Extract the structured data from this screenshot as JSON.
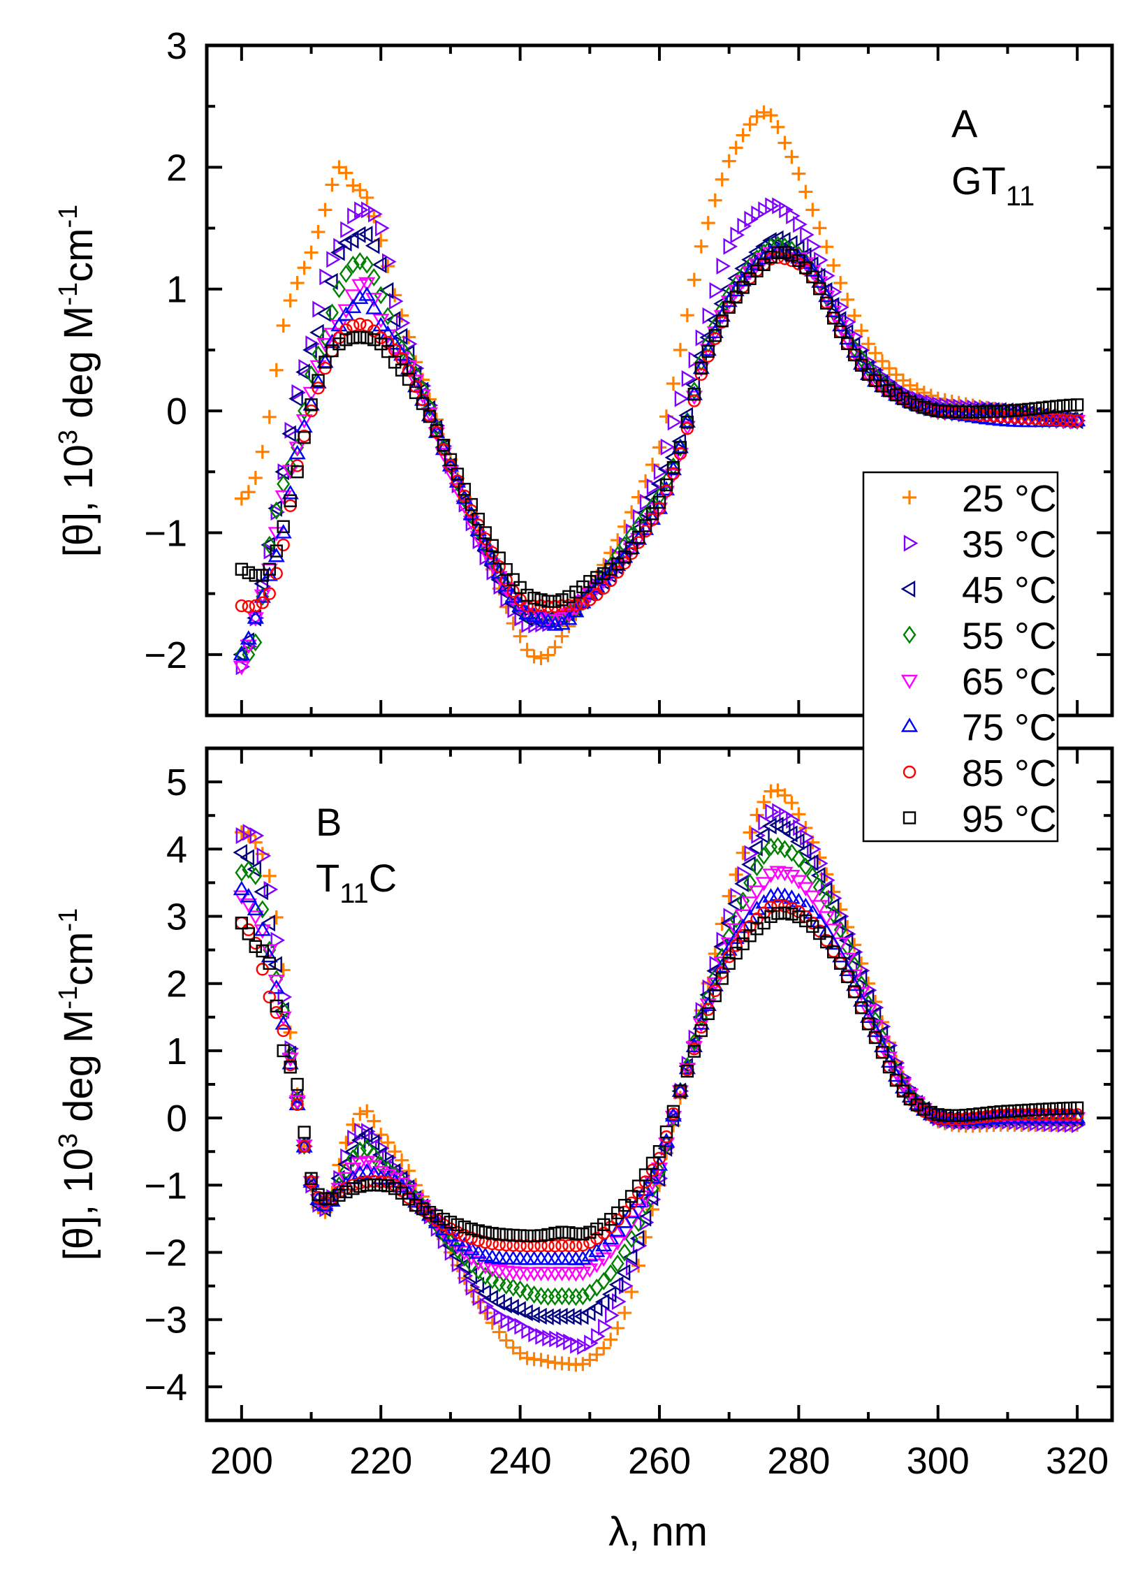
{
  "chart_data": [
    {
      "type": "scatter",
      "panel": "A",
      "title_lines": [
        "A",
        "GT",
        "11"
      ],
      "xlabel": "λ, nm",
      "ylabel": {
        "main": "[θ], 10",
        "sup1": "3",
        "mid": " deg M",
        "sup2": "-1",
        "mid2": "cm",
        "sup3": "-1"
      },
      "xlim": [
        195,
        325
      ],
      "ylim": [
        -2.5,
        3
      ],
      "xticks": [
        200,
        220,
        240,
        260,
        280,
        300,
        320
      ],
      "yticks": [
        -2,
        -1,
        0,
        1,
        2,
        3
      ],
      "ytick_labels": [
        "−2",
        "−1",
        "0",
        "1",
        "2",
        "3"
      ],
      "x": [
        200,
        202,
        204,
        206,
        208,
        210,
        212,
        214,
        216,
        218,
        220,
        222,
        225,
        230,
        235,
        240,
        243,
        246,
        250,
        255,
        260,
        263,
        266,
        270,
        275,
        278,
        282,
        286,
        290,
        295,
        300,
        310,
        320
      ],
      "series": [
        {
          "name": "25 °C",
          "values": [
            -0.72,
            -0.55,
            -0.05,
            0.7,
            1.05,
            1.3,
            1.65,
            2.0,
            1.85,
            1.75,
            1.4,
            0.95,
            0.4,
            -0.4,
            -1.15,
            -1.85,
            -2.03,
            -1.85,
            -1.45,
            -0.95,
            -0.3,
            0.5,
            1.35,
            2.05,
            2.45,
            2.2,
            1.65,
            1.05,
            0.55,
            0.25,
            0.1,
            0.0,
            -0.05
          ]
        },
        {
          "name": "35 °C",
          "values": [
            -2.1,
            -1.7,
            -1.15,
            -0.5,
            0.15,
            0.55,
            1.1,
            1.35,
            1.6,
            1.65,
            1.5,
            0.9,
            0.35,
            -0.45,
            -1.2,
            -1.7,
            -1.75,
            -1.7,
            -1.5,
            -1.1,
            -0.5,
            0.1,
            0.6,
            1.35,
            1.65,
            1.65,
            1.35,
            0.85,
            0.4,
            0.15,
            0.05,
            0.0,
            -0.08
          ]
        },
        {
          "name": "45 °C",
          "values": [
            -2.0,
            -1.7,
            -1.1,
            -0.5,
            0.1,
            0.5,
            0.8,
            1.3,
            1.4,
            1.45,
            1.2,
            0.75,
            0.3,
            -0.45,
            -1.15,
            -1.65,
            -1.7,
            -1.7,
            -1.5,
            -1.2,
            -0.6,
            -0.25,
            0.45,
            1.0,
            1.35,
            1.4,
            1.2,
            0.75,
            0.35,
            0.1,
            0.0,
            0.0,
            -0.08
          ]
        },
        {
          "name": "55 °C",
          "values": [
            -2.0,
            -1.9,
            -1.1,
            -0.6,
            -0.3,
            0.3,
            0.6,
            1.0,
            1.2,
            1.2,
            0.95,
            0.6,
            0.3,
            -0.45,
            -1.1,
            -1.6,
            -1.7,
            -1.7,
            -1.5,
            -1.1,
            -0.7,
            -0.3,
            0.4,
            0.95,
            1.3,
            1.35,
            1.15,
            0.7,
            0.35,
            0.1,
            0.0,
            -0.05,
            -0.08
          ]
        },
        {
          "name": "65 °C",
          "values": [
            -2.1,
            -1.7,
            -1.3,
            -0.7,
            -0.3,
            0.15,
            0.55,
            0.7,
            0.95,
            1.05,
            0.75,
            0.5,
            0.25,
            -0.5,
            -1.15,
            -1.6,
            -1.7,
            -1.7,
            -1.5,
            -1.2,
            -0.8,
            -0.35,
            0.35,
            0.9,
            1.25,
            1.3,
            1.15,
            0.7,
            0.3,
            0.1,
            0.0,
            -0.05,
            -0.08
          ]
        },
        {
          "name": "75 °C",
          "values": [
            -2.0,
            -1.7,
            -1.35,
            -1.0,
            -0.35,
            0.05,
            0.4,
            0.7,
            0.85,
            0.95,
            0.7,
            0.55,
            0.2,
            -0.45,
            -1.1,
            -1.6,
            -1.7,
            -1.75,
            -1.5,
            -1.2,
            -0.8,
            -0.3,
            0.35,
            0.9,
            1.25,
            1.3,
            1.15,
            0.7,
            0.3,
            0.1,
            0.0,
            -0.08,
            -0.08
          ]
        },
        {
          "name": "85 °C",
          "values": [
            -1.6,
            -1.6,
            -1.5,
            -1.1,
            -0.45,
            0.0,
            0.35,
            0.6,
            0.7,
            0.7,
            0.6,
            0.5,
            0.2,
            -0.45,
            -1.05,
            -1.55,
            -1.6,
            -1.6,
            -1.55,
            -1.25,
            -0.8,
            -0.35,
            0.3,
            0.85,
            1.2,
            1.25,
            1.1,
            0.65,
            0.3,
            0.1,
            0.0,
            -0.05,
            -0.08
          ]
        },
        {
          "name": "95 °C",
          "values": [
            -1.3,
            -1.35,
            -1.3,
            -0.95,
            -0.5,
            0.05,
            0.4,
            0.55,
            0.6,
            0.6,
            0.55,
            0.4,
            0.15,
            -0.4,
            -1.0,
            -1.45,
            -1.55,
            -1.55,
            -1.4,
            -1.2,
            -0.75,
            -0.3,
            0.35,
            0.85,
            1.2,
            1.3,
            1.1,
            0.65,
            0.3,
            0.1,
            0.0,
            0.0,
            0.05
          ]
        }
      ]
    },
    {
      "type": "scatter",
      "panel": "B",
      "title_lines": [
        "B",
        "T",
        "11",
        "C"
      ],
      "xlabel": "λ, nm",
      "ylabel": {
        "main": "[θ], 10",
        "sup1": "3",
        "mid": " deg M",
        "sup2": "-1",
        "mid2": "cm",
        "sup3": "-1"
      },
      "xlim": [
        195,
        325
      ],
      "ylim": [
        -4.5,
        5.5
      ],
      "xticks": [
        200,
        220,
        240,
        260,
        280,
        300,
        320
      ],
      "xtick_labels": [
        "200",
        "220",
        "240",
        "260",
        "280",
        "300",
        "320"
      ],
      "yticks": [
        -4,
        -3,
        -2,
        -1,
        0,
        1,
        2,
        3,
        4,
        5
      ],
      "ytick_labels": [
        "−4",
        "−3",
        "−2",
        "−1",
        "0",
        "1",
        "2",
        "3",
        "4",
        "5"
      ],
      "x": [
        200,
        202,
        204,
        206,
        208,
        210,
        212,
        214,
        216,
        218,
        220,
        222,
        225,
        230,
        235,
        240,
        243,
        246,
        250,
        255,
        260,
        263,
        266,
        270,
        275,
        278,
        282,
        286,
        290,
        295,
        300,
        310,
        320
      ],
      "series": [
        {
          "name": "25 °C",
          "values": [
            4.25,
            4.1,
            3.6,
            2.2,
            0.35,
            -1.0,
            -1.4,
            -0.7,
            -0.1,
            0.1,
            -0.25,
            -0.5,
            -1.0,
            -2.0,
            -2.9,
            -3.5,
            -3.6,
            -3.65,
            -3.6,
            -2.9,
            -1.0,
            0.3,
            1.6,
            3.3,
            4.7,
            4.8,
            4.1,
            3.1,
            2.0,
            0.6,
            -0.05,
            -0.1,
            -0.1
          ]
        },
        {
          "name": "35 °C",
          "values": [
            4.2,
            4.2,
            3.4,
            1.8,
            0.3,
            -1.0,
            -1.35,
            -0.9,
            -0.3,
            -0.2,
            -0.45,
            -0.75,
            -1.15,
            -2.0,
            -2.8,
            -3.1,
            -3.25,
            -3.3,
            -3.35,
            -2.5,
            -0.9,
            0.4,
            1.6,
            3.0,
            4.4,
            4.5,
            4.0,
            3.0,
            1.9,
            0.6,
            0.0,
            -0.05,
            -0.1
          ]
        },
        {
          "name": "45 °C",
          "values": [
            3.95,
            3.7,
            2.9,
            1.6,
            0.3,
            -1.0,
            -1.35,
            -0.9,
            -0.5,
            -0.25,
            -0.55,
            -0.8,
            -1.2,
            -1.9,
            -2.6,
            -2.85,
            -2.95,
            -2.95,
            -2.9,
            -2.3,
            -0.9,
            0.4,
            1.5,
            2.9,
            4.2,
            4.3,
            3.8,
            2.9,
            1.8,
            0.5,
            0.0,
            0.0,
            0.0
          ]
        },
        {
          "name": "55 °C",
          "values": [
            3.65,
            3.6,
            2.5,
            1.6,
            0.25,
            -0.95,
            -1.3,
            -1.0,
            -0.6,
            -0.45,
            -0.7,
            -0.85,
            -1.2,
            -1.85,
            -2.35,
            -2.55,
            -2.65,
            -2.65,
            -2.6,
            -2.0,
            -0.8,
            0.4,
            1.5,
            2.7,
            3.9,
            4.0,
            3.6,
            2.8,
            1.7,
            0.5,
            0.0,
            0.0,
            0.0
          ]
        },
        {
          "name": "65 °C",
          "values": [
            3.3,
            3.0,
            2.5,
            1.5,
            0.25,
            -0.95,
            -1.3,
            -1.05,
            -0.75,
            -0.65,
            -0.8,
            -0.9,
            -1.2,
            -1.8,
            -2.2,
            -2.3,
            -2.3,
            -2.3,
            -2.25,
            -1.7,
            -0.75,
            0.4,
            1.4,
            2.6,
            3.5,
            3.65,
            3.3,
            2.6,
            1.6,
            0.5,
            0.0,
            0.0,
            0.0
          ]
        },
        {
          "name": "75 °C",
          "values": [
            3.4,
            3.1,
            2.4,
            1.4,
            0.2,
            -0.95,
            -1.3,
            -1.1,
            -0.9,
            -0.8,
            -0.9,
            -0.95,
            -1.25,
            -1.75,
            -2.05,
            -2.1,
            -2.1,
            -2.1,
            -2.05,
            -1.55,
            -0.7,
            0.4,
            1.4,
            2.5,
            3.2,
            3.3,
            3.05,
            2.4,
            1.5,
            0.45,
            0.0,
            0.0,
            0.0
          ]
        },
        {
          "name": "85 °C",
          "values": [
            2.9,
            2.6,
            1.8,
            1.3,
            0.2,
            -0.95,
            -1.25,
            -1.1,
            -1.0,
            -0.95,
            -0.95,
            -1.0,
            -1.3,
            -1.65,
            -1.85,
            -1.9,
            -1.9,
            -1.9,
            -1.85,
            -1.4,
            -0.6,
            0.4,
            1.35,
            2.4,
            3.05,
            3.15,
            2.9,
            2.3,
            1.4,
            0.4,
            0.0,
            0.05,
            0.05
          ]
        },
        {
          "name": "95 °C",
          "values": [
            2.9,
            2.55,
            2.3,
            1.0,
            0.5,
            -0.9,
            -1.2,
            -1.15,
            -1.05,
            -1.0,
            -1.0,
            -1.05,
            -1.3,
            -1.55,
            -1.7,
            -1.75,
            -1.75,
            -1.7,
            -1.7,
            -1.3,
            -0.5,
            0.4,
            1.3,
            2.3,
            2.9,
            3.05,
            2.85,
            2.3,
            1.4,
            0.4,
            0.05,
            0.1,
            0.15
          ]
        }
      ]
    }
  ],
  "legend": {
    "placement": "right, spanning both panels",
    "entries": [
      {
        "label": "25 °C",
        "marker": "plus",
        "color": "#ff8000"
      },
      {
        "label": "35 °C",
        "marker": "triangle-right",
        "color": "#8000ff"
      },
      {
        "label": "45 °C",
        "marker": "triangle-left",
        "color": "#000080"
      },
      {
        "label": "55 °C",
        "marker": "diamond",
        "color": "#008000"
      },
      {
        "label": "65 °C",
        "marker": "triangle-down",
        "color": "#ff00ff"
      },
      {
        "label": "75 °C",
        "marker": "triangle-up",
        "color": "#0000ff"
      },
      {
        "label": "85 °C",
        "marker": "circle",
        "color": "#ff0000"
      },
      {
        "label": "95 °C",
        "marker": "square",
        "color": "#000000"
      }
    ]
  }
}
